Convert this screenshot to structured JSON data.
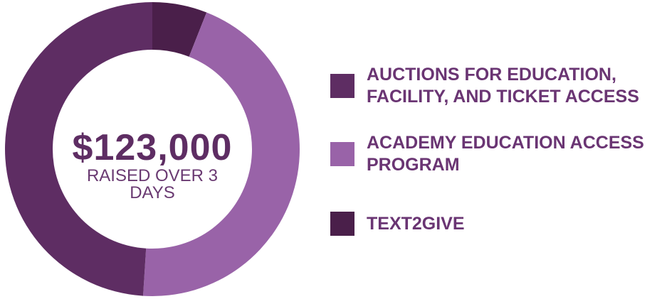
{
  "chart_data": {
    "type": "pie",
    "center_value": "$123,000",
    "center_label": "RAISED OVER 3 DAYS",
    "categories": [
      "AUCTIONS FOR EDUCATION, FACILITY, AND TICKET ACCESS",
      "ACADEMY EDUCATION ACCESS PROGRAM",
      "TEXT2GIVE"
    ],
    "values": [
      49,
      45,
      6
    ],
    "colors": [
      "#5e2d63",
      "#9963a8",
      "#4a1f4a"
    ]
  }
}
